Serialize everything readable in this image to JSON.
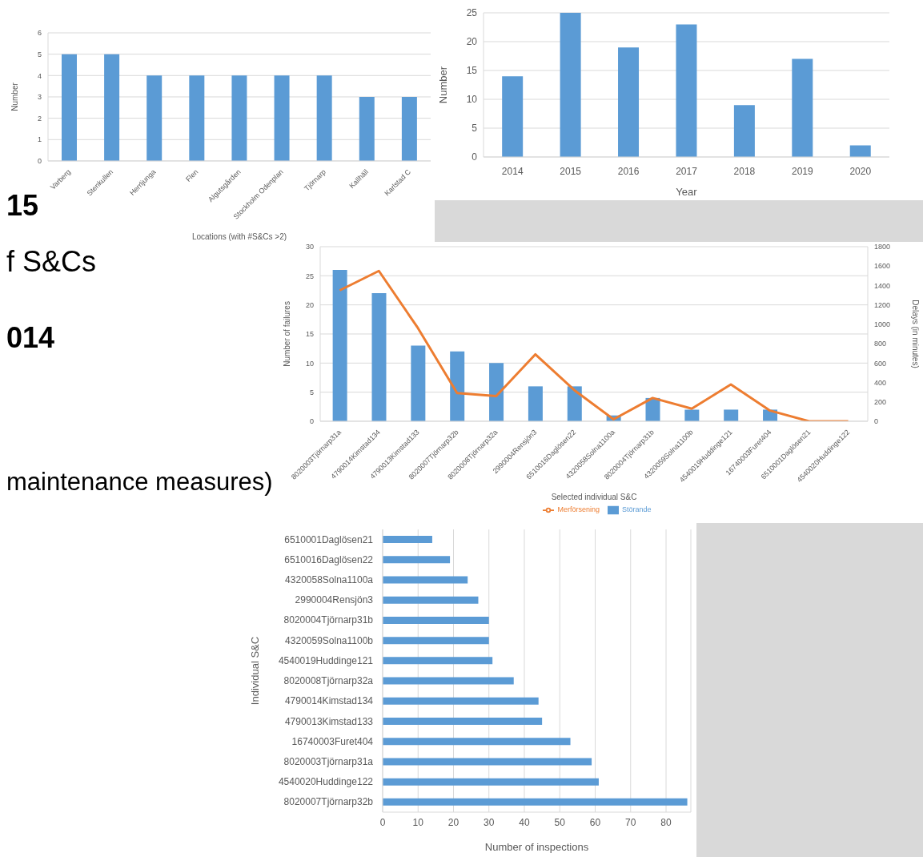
{
  "chart_data": [
    {
      "type": "bar",
      "xlabel": "Locations (with #S&Cs >2)",
      "ylabel": "Number",
      "categories": [
        "Varberg",
        "Stenkullen",
        "Herrljunga",
        "Flen",
        "Algutsgården",
        "Stockholm Odenplan",
        "Tjörnarp",
        "Kallhäll",
        "Karlstad C"
      ],
      "values": [
        5,
        5,
        4,
        4,
        4,
        4,
        4,
        3,
        3
      ],
      "color": "#5b9bd5",
      "ylim": [
        0,
        6
      ],
      "yticks": [
        0,
        1,
        2,
        3,
        4,
        5,
        6
      ],
      "grid": "y"
    },
    {
      "type": "bar",
      "xlabel": "Year",
      "ylabel": "Number",
      "categories": [
        "2014",
        "2015",
        "2016",
        "2017",
        "2018",
        "2019",
        "2020"
      ],
      "values": [
        14,
        25,
        19,
        23,
        9,
        17,
        2
      ],
      "color": "#5b9bd5",
      "ylim": [
        0,
        25
      ],
      "yticks": [
        0,
        5,
        10,
        15,
        20,
        25
      ],
      "grid": "y"
    },
    {
      "type": "other",
      "annotations": [
        "15",
        "f S&Cs",
        "014",
        "maintenance measures)"
      ]
    },
    {
      "type": "bar",
      "xlabel": "Selected individual S&C",
      "ylabel": "Number of failures",
      "y2label": "Delays (in minutes)",
      "categories": [
        "8020003Tjörnarp31a",
        "4790014Kimstad134",
        "4790013Kimstad133",
        "8020007Tjörnarp32b",
        "8020008Tjörnarp32a",
        "2990004Rensjön3",
        "6510016Daglösen22",
        "4320058Solna1100a",
        "8020004Tjörnarp31b",
        "4320059Solna1100b",
        "4540019Huddinge121",
        "16740003Furet404",
        "6510001Daglösen21",
        "4540020Huddinge122"
      ],
      "series": [
        {
          "name": "Störande",
          "type": "bar",
          "color": "#5b9bd5",
          "values": [
            26,
            22,
            13,
            12,
            10,
            6,
            6,
            1,
            4,
            2,
            2,
            2,
            0,
            0
          ]
        },
        {
          "name": "Merförsening",
          "type": "line",
          "axis": "y2",
          "color": "#ed7d31",
          "values": [
            1350,
            1550,
            960,
            290,
            260,
            690,
            320,
            20,
            240,
            130,
            380,
            110,
            0,
            0
          ]
        }
      ],
      "ylim": [
        0,
        30
      ],
      "yticks": [
        0,
        5,
        10,
        15,
        20,
        25,
        30
      ],
      "y2lim": [
        0,
        1800
      ],
      "y2ticks": [
        0,
        200,
        400,
        600,
        800,
        1000,
        1200,
        1400,
        1600,
        1800
      ],
      "grid": "y",
      "legend": "bottom"
    },
    {
      "type": "bar",
      "orientation": "horizontal",
      "xlabel": "Number of inspections",
      "ylabel": "Individual S&C",
      "categories": [
        "6510001Daglösen21",
        "6510016Daglösen22",
        "4320058Solna1100a",
        "2990004Rensjön3",
        "8020004Tjörnarp31b",
        "4320059Solna1100b",
        "4540019Huddinge121",
        "8020008Tjörnarp32a",
        "4790014Kimstad134",
        "4790013Kimstad133",
        "16740003Furet404",
        "8020003Tjörnarp31a",
        "4540020Huddinge122",
        "8020007Tjörnarp32b"
      ],
      "values": [
        14,
        19,
        24,
        27,
        30,
        30,
        31,
        37,
        44,
        45,
        53,
        59,
        61,
        86
      ],
      "color": "#5b9bd5",
      "xlim": [
        0,
        87
      ],
      "xticks": [
        0,
        10,
        20,
        30,
        40,
        50,
        60,
        70,
        80
      ],
      "grid": "x"
    }
  ]
}
